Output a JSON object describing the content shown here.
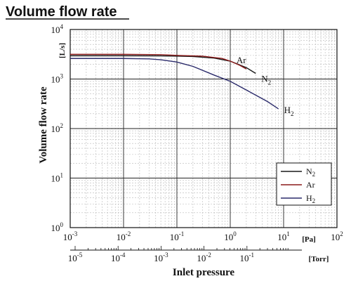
{
  "chart_data": {
    "type": "line",
    "title": "Volume flow rate",
    "ylabel": "Volume flow rate",
    "yunit": "[L/s]",
    "xlabel": "Inlet pressure",
    "x_scale": "log",
    "y_scale": "log",
    "x_primary_unit": "[Pa]",
    "x_secondary_unit": "[Torr]",
    "xlim_pa": [
      0.001,
      100
    ],
    "xlim_torr": [
      1e-05,
      1
    ],
    "ylim": [
      1,
      10000
    ],
    "grid": true,
    "legend_position": "lower-right",
    "x_ticks_pa": [
      {
        "base": "10",
        "exp": "-3"
      },
      {
        "base": "10",
        "exp": "-2"
      },
      {
        "base": "10",
        "exp": "-1"
      },
      {
        "base": "10",
        "exp": "0"
      },
      {
        "base": "10",
        "exp": "1"
      },
      {
        "base": "10",
        "exp": "2"
      }
    ],
    "x_ticks_torr": [
      {
        "base": "10",
        "exp": "-5"
      },
      {
        "base": "10",
        "exp": "-4"
      },
      {
        "base": "10",
        "exp": "-3"
      },
      {
        "base": "10",
        "exp": "-2"
      },
      {
        "base": "10",
        "exp": "-1"
      }
    ],
    "y_ticks": [
      {
        "base": "10",
        "exp": "0"
      },
      {
        "base": "10",
        "exp": "1"
      },
      {
        "base": "10",
        "exp": "2"
      },
      {
        "base": "10",
        "exp": "3"
      },
      {
        "base": "10",
        "exp": "4"
      }
    ],
    "series": [
      {
        "name": "N",
        "name_sub": "2",
        "color": "#1a1a1a",
        "x": [
          0.001,
          0.01,
          0.05,
          0.1,
          0.2,
          0.5,
          1,
          2,
          3
        ],
        "y": [
          2950,
          2950,
          2930,
          2900,
          2850,
          2650,
          2300,
          1700,
          1300
        ]
      },
      {
        "name": "Ar",
        "color": "#8b1a1a",
        "x": [
          0.001,
          0.01,
          0.05,
          0.1,
          0.3,
          0.7,
          1,
          1.5,
          2
        ],
        "y": [
          3150,
          3150,
          3100,
          3000,
          2900,
          2600,
          2300,
          1900,
          1600
        ]
      },
      {
        "name": "H",
        "name_sub": "2",
        "color": "#2b2b6b",
        "x": [
          0.001,
          0.01,
          0.03,
          0.05,
          0.1,
          0.2,
          0.5,
          1,
          2,
          5,
          8
        ],
        "y": [
          2600,
          2600,
          2550,
          2450,
          2200,
          1800,
          1200,
          900,
          600,
          350,
          250
        ]
      }
    ]
  }
}
